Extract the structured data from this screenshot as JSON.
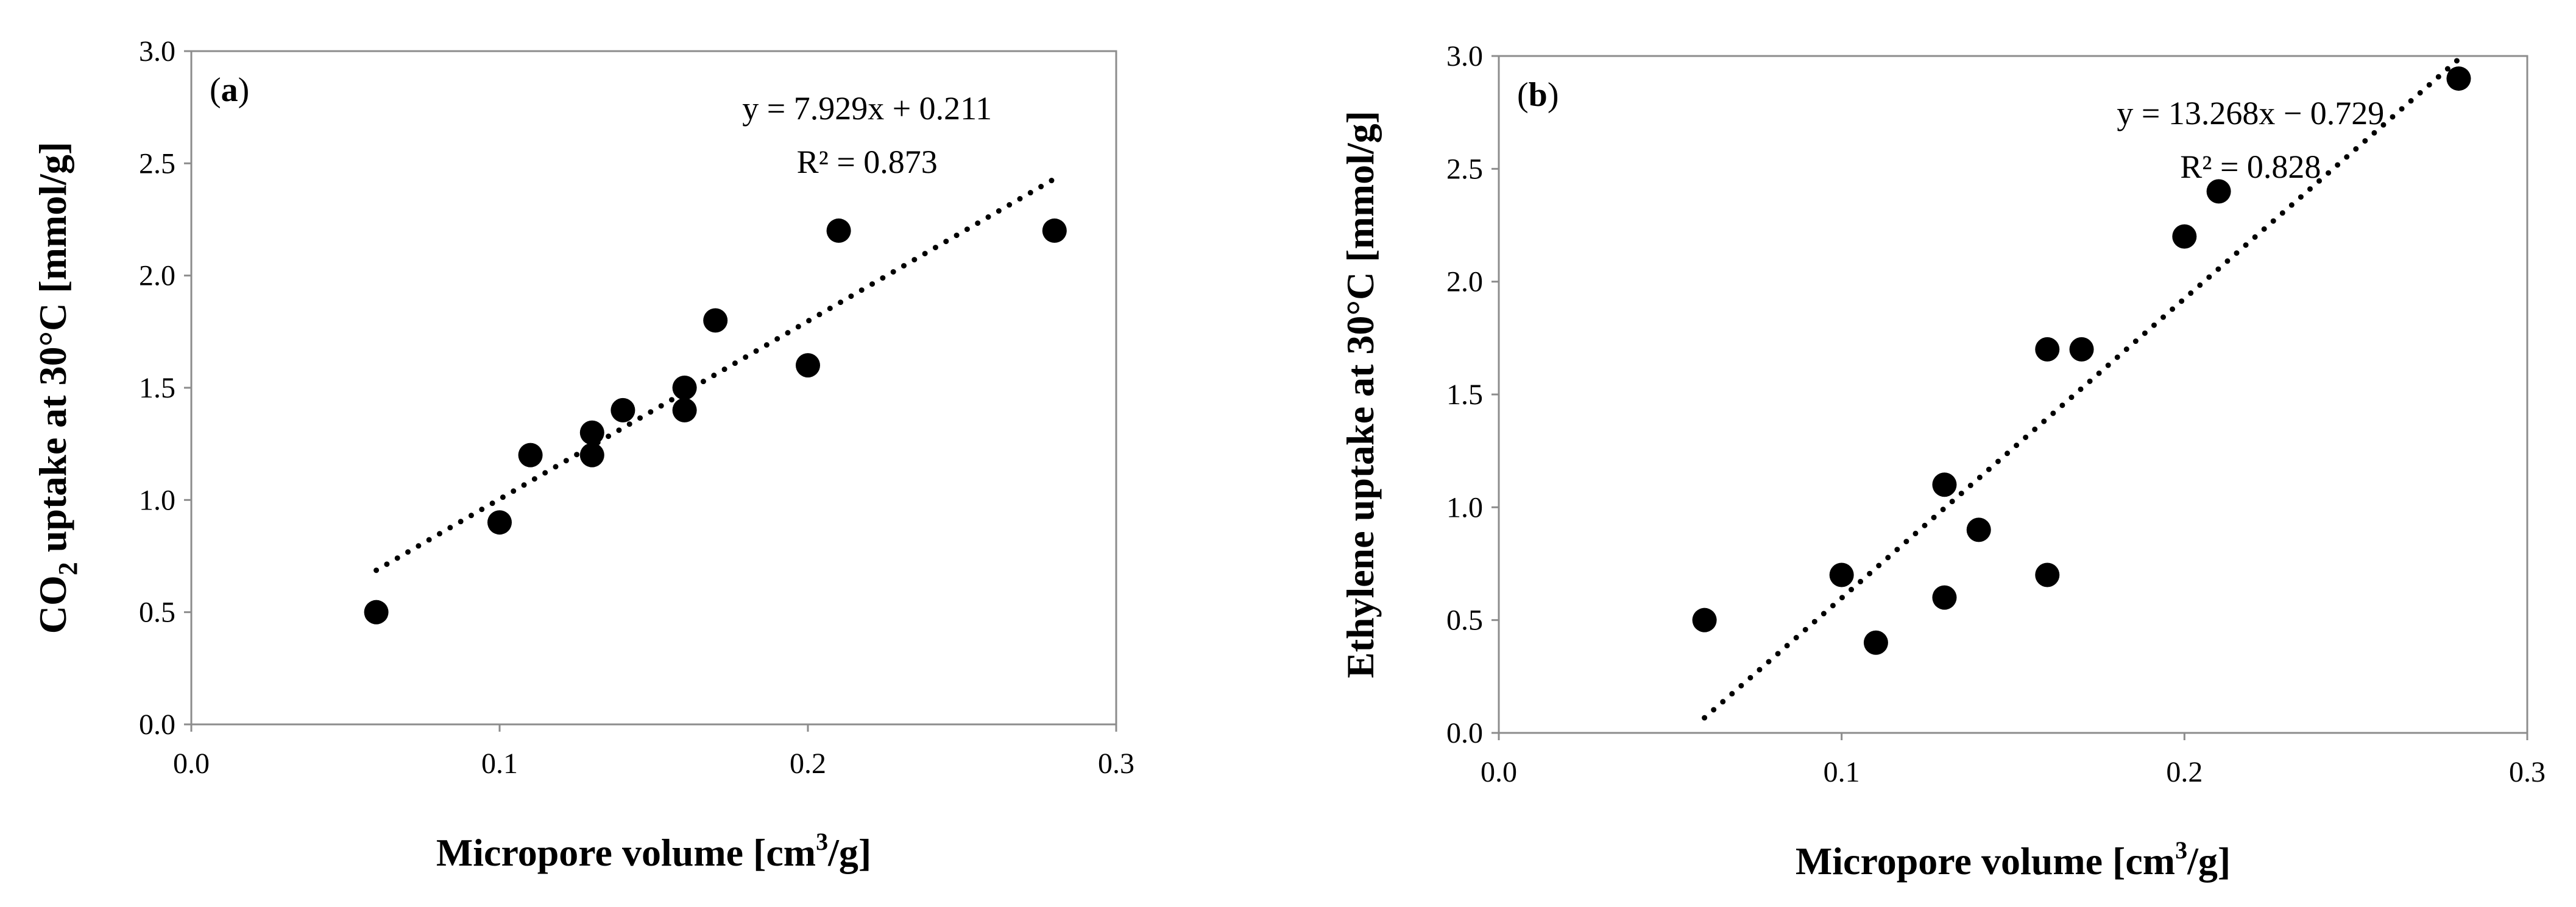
{
  "chart_data": [
    {
      "type": "scatter",
      "panel_label": "a",
      "xlabel": "Micropore volume [cm³/g]",
      "xlabel_main": "Micropore volume [cm",
      "xlabel_sup": "3",
      "xlabel_tail": "/g]",
      "ylabel": "CO₂ uptake at 30°C [mmol/g]",
      "ylabel_main": "CO",
      "ylabel_sub": "2",
      "ylabel_tail": " uptake at 30°C [mmol/g]",
      "xlim": [
        0,
        0.3
      ],
      "ylim": [
        0,
        3
      ],
      "x_ticks": [
        0.0,
        0.1,
        0.2,
        0.3
      ],
      "x_tick_labels": [
        "0.0",
        "0.1",
        "0.2",
        "0.3"
      ],
      "y_ticks": [
        0.0,
        0.5,
        1.0,
        1.5,
        2.0,
        2.5,
        3.0
      ],
      "y_tick_labels": [
        "0.0",
        "0.5",
        "1.0",
        "1.5",
        "2.0",
        "2.5",
        "3.0"
      ],
      "points": [
        {
          "x": 0.06,
          "y": 0.5
        },
        {
          "x": 0.1,
          "y": 0.9
        },
        {
          "x": 0.11,
          "y": 1.2
        },
        {
          "x": 0.13,
          "y": 1.3
        },
        {
          "x": 0.13,
          "y": 1.2
        },
        {
          "x": 0.14,
          "y": 1.4
        },
        {
          "x": 0.16,
          "y": 1.5
        },
        {
          "x": 0.16,
          "y": 1.4
        },
        {
          "x": 0.17,
          "y": 1.8
        },
        {
          "x": 0.2,
          "y": 1.6
        },
        {
          "x": 0.21,
          "y": 2.2
        },
        {
          "x": 0.28,
          "y": 2.2
        }
      ],
      "trendline": {
        "slope": 7.929,
        "intercept": 0.211,
        "x_range": [
          0.06,
          0.28
        ]
      },
      "equation": "y = 7.929x + 0.211",
      "r2_text": "R² = 0.873"
    },
    {
      "type": "scatter",
      "panel_label": "b",
      "xlabel": "Micropore volume [cm³/g]",
      "xlabel_main": "Micropore volume [cm",
      "xlabel_sup": "3",
      "xlabel_tail": "/g]",
      "ylabel": "Ethylene  uptake at 30°C [mmol/g]",
      "ylabel_main": "Ethylene  uptake at 30°C [mmol/g]",
      "ylabel_sub": "",
      "ylabel_tail": "",
      "xlim": [
        0,
        0.3
      ],
      "ylim": [
        0,
        3
      ],
      "x_ticks": [
        0.0,
        0.1,
        0.2,
        0.3
      ],
      "x_tick_labels": [
        "0.0",
        "0.1",
        "0.2",
        "0.3"
      ],
      "y_ticks": [
        0.0,
        0.5,
        1.0,
        1.5,
        2.0,
        2.5,
        3.0
      ],
      "y_tick_labels": [
        "0.0",
        "0.5",
        "1.0",
        "1.5",
        "2.0",
        "2.5",
        "3.0"
      ],
      "points": [
        {
          "x": 0.06,
          "y": 0.5
        },
        {
          "x": 0.1,
          "y": 0.7
        },
        {
          "x": 0.11,
          "y": 0.4
        },
        {
          "x": 0.13,
          "y": 1.1
        },
        {
          "x": 0.13,
          "y": 0.6
        },
        {
          "x": 0.14,
          "y": 0.9
        },
        {
          "x": 0.16,
          "y": 1.7
        },
        {
          "x": 0.16,
          "y": 0.7
        },
        {
          "x": 0.17,
          "y": 1.7
        },
        {
          "x": 0.2,
          "y": 2.2
        },
        {
          "x": 0.21,
          "y": 2.4
        },
        {
          "x": 0.28,
          "y": 2.9
        }
      ],
      "trendline": {
        "slope": 13.268,
        "intercept": -0.729,
        "x_range": [
          0.06,
          0.28
        ]
      },
      "equation": "y = 13.268x − 0.729",
      "r2_text": "R² = 0.828"
    }
  ]
}
